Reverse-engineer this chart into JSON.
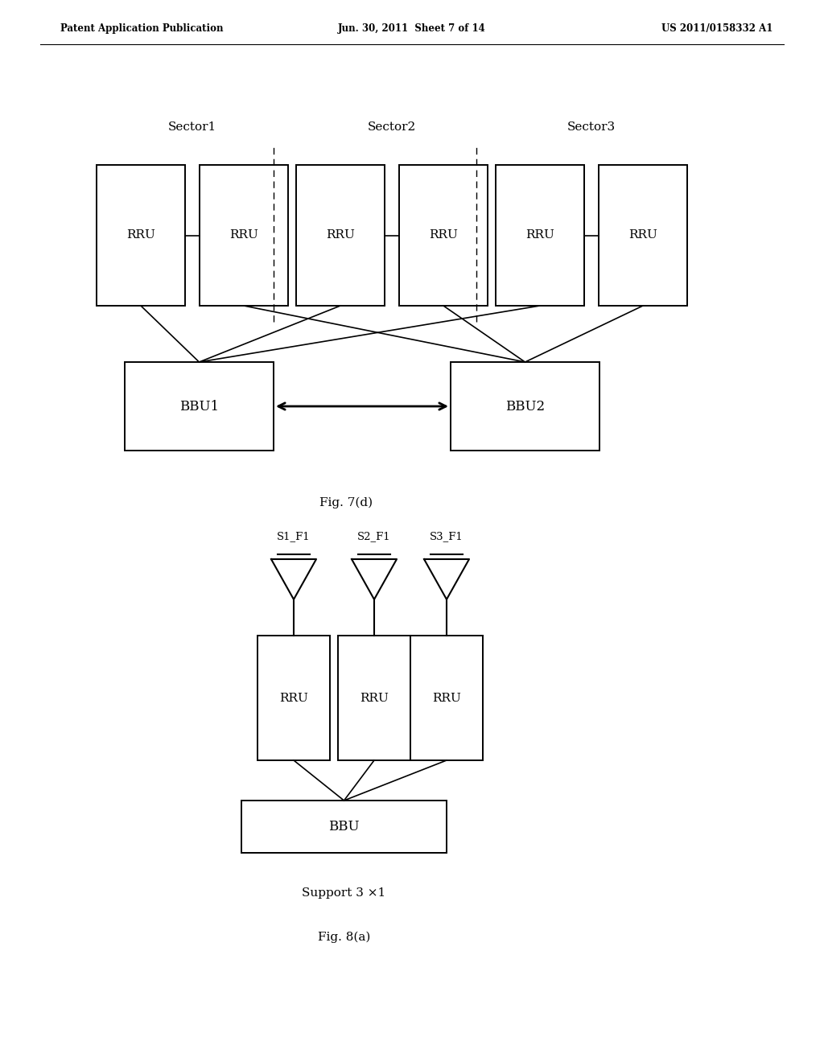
{
  "bg_color": "#ffffff",
  "header_left": "Patent Application Publication",
  "header_mid": "Jun. 30, 2011  Sheet 7 of 14",
  "header_right": "US 2011/0158332 A1",
  "fig7d_caption": "Fig. 7(d)",
  "fig8a_caption": "Fig. 8(a)",
  "fig8a_support_label": "Support 3 ×1",
  "sector1_label": "Sector1",
  "sector2_label": "Sector2",
  "sector3_label": "Sector3",
  "rru_label": "RRU",
  "bbu1_label": "BBU1",
  "bbu2_label": "BBU2",
  "bbu_label": "BBU",
  "antenna_labels": [
    "S1_F1",
    "S2_F1",
    "S3_F1"
  ]
}
